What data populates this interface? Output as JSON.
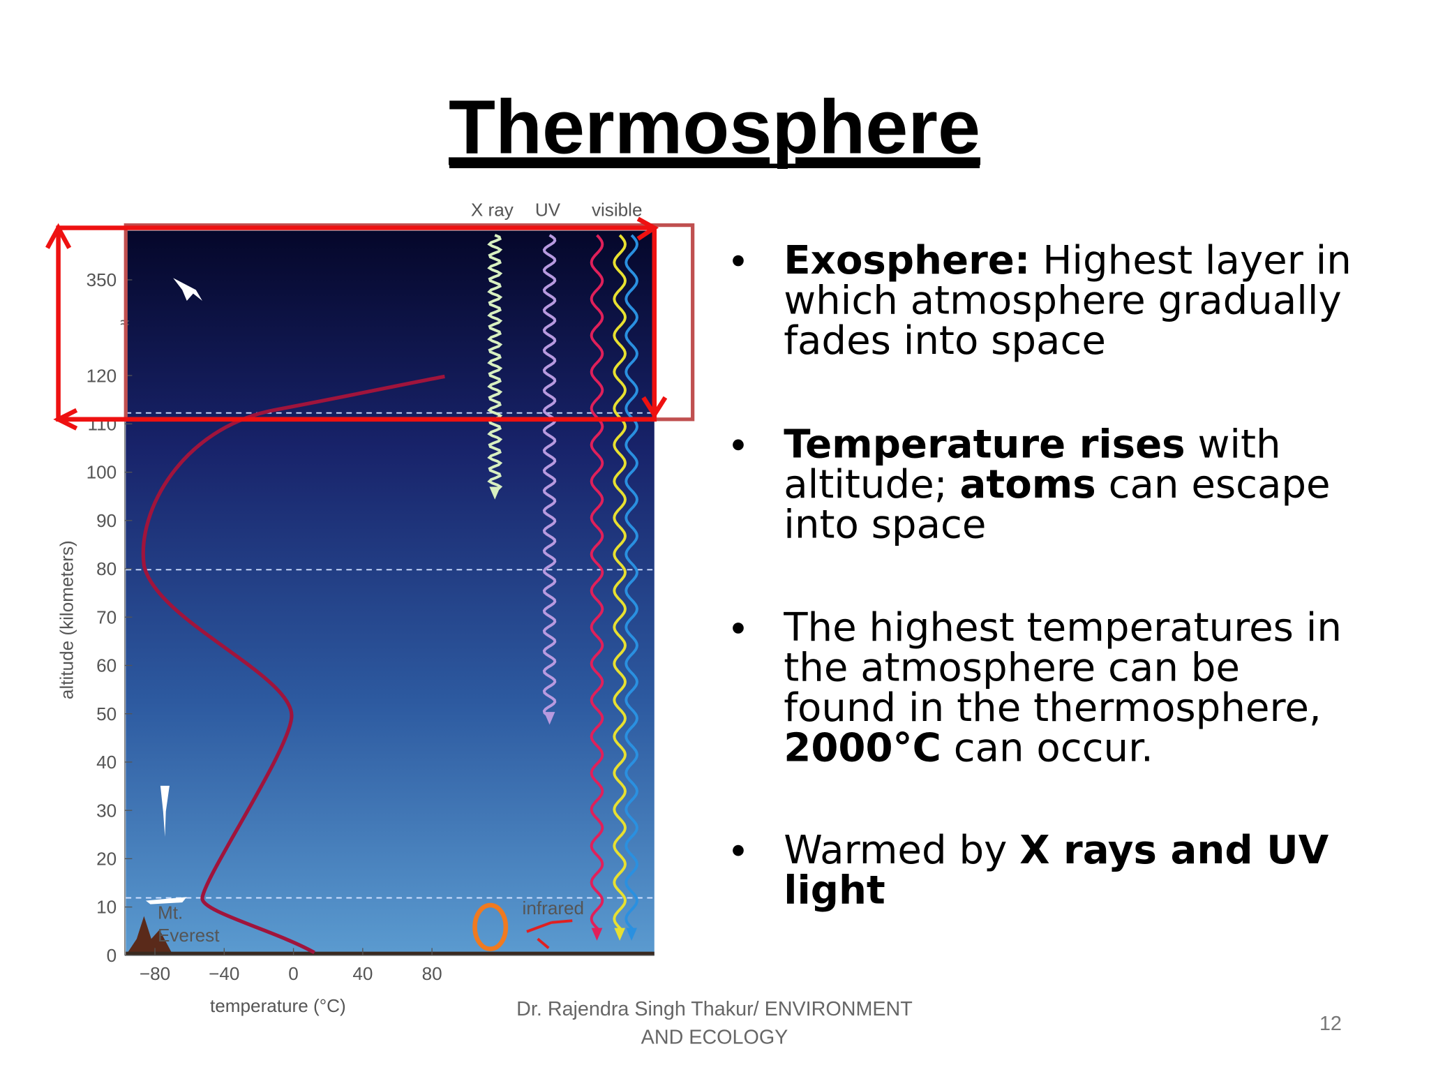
{
  "slide": {
    "title": "Thermosphere",
    "figure": {
      "wave_labels": [
        "X ray",
        "UV",
        "visible"
      ],
      "yticks": [
        "0",
        "10",
        "20",
        "30",
        "40",
        "50",
        "60",
        "70",
        "80",
        "90",
        "100",
        "110",
        "120",
        "350"
      ],
      "xticks": [
        "−80",
        "−40",
        "0",
        "40",
        "80"
      ],
      "y_label": "altitude (kilometers)",
      "x_label": "temperature (°C)",
      "infrared_label": "infrared",
      "everest_label": [
        "Mt.",
        "Everest"
      ]
    },
    "bullets": [
      {
        "lines": [
          {
            "runs": [
              {
                "text": "Exosphere:",
                "bold": true
              },
              {
                "text": " Highest layer in",
                "bold": false
              }
            ]
          },
          {
            "runs": [
              {
                "text": "which atmosphere gradually",
                "bold": false
              }
            ]
          },
          {
            "runs": [
              {
                "text": "fades into space",
                "bold": false
              }
            ]
          }
        ]
      },
      {
        "lines": [
          {
            "runs": [
              {
                "text": "Temperature rises",
                "bold": true
              },
              {
                "text": " with",
                "bold": false
              }
            ]
          },
          {
            "runs": [
              {
                "text": "altitude; ",
                "bold": false
              },
              {
                "text": "atoms",
                "bold": true
              },
              {
                "text": " can escape",
                "bold": false
              }
            ]
          },
          {
            "runs": [
              {
                "text": "into space",
                "bold": false
              }
            ]
          }
        ]
      },
      {
        "lines": [
          {
            "runs": [
              {
                "text": "The highest temperatures in",
                "bold": false
              }
            ]
          },
          {
            "runs": [
              {
                "text": "the atmosphere can be",
                "bold": false
              }
            ]
          },
          {
            "runs": [
              {
                "text": "found in the thermosphere,",
                "bold": false
              }
            ]
          },
          {
            "runs": [
              {
                "text": "2000°C",
                "bold": true
              },
              {
                "text": " can occur.",
                "bold": false
              }
            ]
          }
        ]
      },
      {
        "lines": [
          {
            "runs": [
              {
                "text": "Warmed by ",
                "bold": false
              },
              {
                "text": "X rays and UV",
                "bold": true
              }
            ]
          },
          {
            "runs": [
              {
                "text": "light",
                "bold": true
              }
            ]
          }
        ]
      }
    ],
    "footer": [
      "Dr. Rajendra Singh Thakur/ ENVIRONMENT",
      "AND ECOLOGY"
    ],
    "page_number": "12"
  }
}
